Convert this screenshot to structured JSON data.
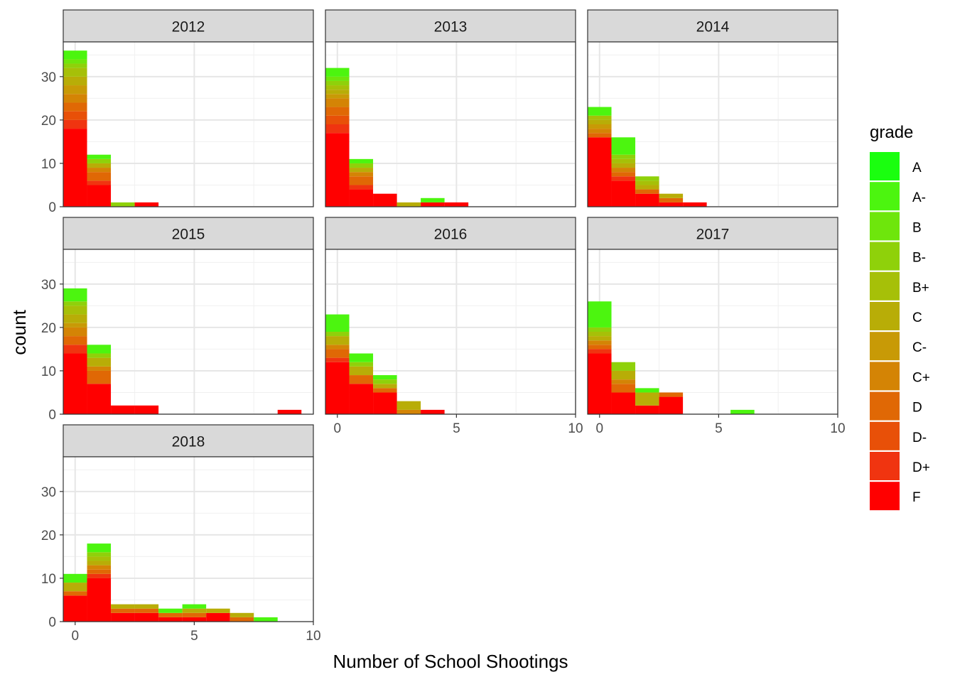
{
  "chart_data": {
    "type": "bar",
    "stacked": true,
    "facet_variable": "year",
    "xlabel": "Number of School Shootings",
    "ylabel": "count",
    "xlim": [
      -0.5,
      10
    ],
    "ylim": [
      0,
      38
    ],
    "x_ticks": [
      0,
      5,
      10
    ],
    "y_ticks": [
      0,
      10,
      20,
      30
    ],
    "grid": true,
    "legend": {
      "title": "grade",
      "placement": "right",
      "entries": [
        "A",
        "A-",
        "B",
        "B-",
        "B+",
        "C",
        "C-",
        "C+",
        "D",
        "D-",
        "D+",
        "F"
      ]
    },
    "grade_colors": {
      "A": "#1aff0f",
      "A-": "#4cf50f",
      "B": "#6ee60c",
      "B-": "#8fd10a",
      "B+": "#a6c008",
      "C": "#b8ad07",
      "C-": "#c89a06",
      "C+": "#d48405",
      "D": "#e06805",
      "D-": "#e85008",
      "D+": "#f03410",
      "F": "#ff0000"
    },
    "facets": [
      {
        "label": "2012",
        "bins": [
          {
            "x": 0,
            "total": 36,
            "stack": [
              {
                "grade": "F",
                "value": 18
              },
              {
                "grade": "D+",
                "value": 2
              },
              {
                "grade": "D-",
                "value": 2
              },
              {
                "grade": "D",
                "value": 2
              },
              {
                "grade": "C+",
                "value": 2
              },
              {
                "grade": "C-",
                "value": 2
              },
              {
                "grade": "C",
                "value": 2
              },
              {
                "grade": "B+",
                "value": 2
              },
              {
                "grade": "B-",
                "value": 1
              },
              {
                "grade": "B",
                "value": 1
              },
              {
                "grade": "A-",
                "value": 2
              }
            ]
          },
          {
            "x": 1,
            "total": 12,
            "stack": [
              {
                "grade": "F",
                "value": 5
              },
              {
                "grade": "D+",
                "value": 1
              },
              {
                "grade": "D",
                "value": 2
              },
              {
                "grade": "C+",
                "value": 1
              },
              {
                "grade": "C",
                "value": 1
              },
              {
                "grade": "B-",
                "value": 1
              },
              {
                "grade": "A-",
                "value": 1
              }
            ]
          },
          {
            "x": 2,
            "total": 1,
            "stack": [
              {
                "grade": "B-",
                "value": 1
              }
            ]
          },
          {
            "x": 3,
            "total": 1,
            "stack": [
              {
                "grade": "F",
                "value": 1
              }
            ]
          }
        ]
      },
      {
        "label": "2013",
        "bins": [
          {
            "x": 0,
            "total": 32,
            "stack": [
              {
                "grade": "F",
                "value": 17
              },
              {
                "grade": "D+",
                "value": 2
              },
              {
                "grade": "D-",
                "value": 2
              },
              {
                "grade": "D",
                "value": 2
              },
              {
                "grade": "C+",
                "value": 2
              },
              {
                "grade": "C-",
                "value": 1
              },
              {
                "grade": "C",
                "value": 1
              },
              {
                "grade": "B+",
                "value": 1
              },
              {
                "grade": "B-",
                "value": 1
              },
              {
                "grade": "B",
                "value": 1
              },
              {
                "grade": "A-",
                "value": 2
              }
            ]
          },
          {
            "x": 1,
            "total": 11,
            "stack": [
              {
                "grade": "F",
                "value": 4
              },
              {
                "grade": "D+",
                "value": 1
              },
              {
                "grade": "D",
                "value": 2
              },
              {
                "grade": "C+",
                "value": 1
              },
              {
                "grade": "C",
                "value": 1
              },
              {
                "grade": "B-",
                "value": 1
              },
              {
                "grade": "A-",
                "value": 1
              }
            ]
          },
          {
            "x": 2,
            "total": 3,
            "stack": [
              {
                "grade": "F",
                "value": 3
              }
            ]
          },
          {
            "x": 3,
            "total": 1,
            "stack": [
              {
                "grade": "C",
                "value": 1
              }
            ]
          },
          {
            "x": 4,
            "total": 2,
            "stack": [
              {
                "grade": "F",
                "value": 1
              },
              {
                "grade": "A-",
                "value": 1
              }
            ]
          },
          {
            "x": 5,
            "total": 1,
            "stack": [
              {
                "grade": "F",
                "value": 1
              }
            ]
          }
        ]
      },
      {
        "label": "2014",
        "bins": [
          {
            "x": 0,
            "total": 23,
            "stack": [
              {
                "grade": "F",
                "value": 16
              },
              {
                "grade": "D",
                "value": 1
              },
              {
                "grade": "C+",
                "value": 1
              },
              {
                "grade": "C-",
                "value": 1
              },
              {
                "grade": "C",
                "value": 1
              },
              {
                "grade": "B+",
                "value": 1
              },
              {
                "grade": "A-",
                "value": 2
              }
            ]
          },
          {
            "x": 1,
            "total": 16,
            "stack": [
              {
                "grade": "F",
                "value": 6
              },
              {
                "grade": "D+",
                "value": 1
              },
              {
                "grade": "D",
                "value": 1
              },
              {
                "grade": "C+",
                "value": 1
              },
              {
                "grade": "C",
                "value": 1
              },
              {
                "grade": "B+",
                "value": 1
              },
              {
                "grade": "B-",
                "value": 1
              },
              {
                "grade": "A-",
                "value": 4
              }
            ]
          },
          {
            "x": 2,
            "total": 7,
            "stack": [
              {
                "grade": "F",
                "value": 3
              },
              {
                "grade": "D",
                "value": 1
              },
              {
                "grade": "C",
                "value": 1
              },
              {
                "grade": "B+",
                "value": 1
              },
              {
                "grade": "B-",
                "value": 1
              }
            ]
          },
          {
            "x": 3,
            "total": 3,
            "stack": [
              {
                "grade": "F",
                "value": 1
              },
              {
                "grade": "D",
                "value": 1
              },
              {
                "grade": "C",
                "value": 1
              }
            ]
          },
          {
            "x": 4,
            "total": 1,
            "stack": [
              {
                "grade": "F",
                "value": 1
              }
            ]
          }
        ]
      },
      {
        "label": "2015",
        "bins": [
          {
            "x": 0,
            "total": 29,
            "stack": [
              {
                "grade": "F",
                "value": 14
              },
              {
                "grade": "D+",
                "value": 2
              },
              {
                "grade": "D",
                "value": 2
              },
              {
                "grade": "C+",
                "value": 2
              },
              {
                "grade": "C-",
                "value": 1
              },
              {
                "grade": "C",
                "value": 2
              },
              {
                "grade": "B+",
                "value": 2
              },
              {
                "grade": "B-",
                "value": 1
              },
              {
                "grade": "A-",
                "value": 3
              }
            ]
          },
          {
            "x": 1,
            "total": 16,
            "stack": [
              {
                "grade": "F",
                "value": 7
              },
              {
                "grade": "D",
                "value": 3
              },
              {
                "grade": "C+",
                "value": 1
              },
              {
                "grade": "C",
                "value": 2
              },
              {
                "grade": "B-",
                "value": 1
              },
              {
                "grade": "A-",
                "value": 2
              }
            ]
          },
          {
            "x": 2,
            "total": 2,
            "stack": [
              {
                "grade": "F",
                "value": 2
              }
            ]
          },
          {
            "x": 3,
            "total": 2,
            "stack": [
              {
                "grade": "F",
                "value": 2
              }
            ]
          },
          {
            "x": 9,
            "total": 1,
            "stack": [
              {
                "grade": "F",
                "value": 1
              }
            ]
          }
        ]
      },
      {
        "label": "2016",
        "bins": [
          {
            "x": 0,
            "total": 23,
            "stack": [
              {
                "grade": "F",
                "value": 12
              },
              {
                "grade": "D+",
                "value": 1
              },
              {
                "grade": "D",
                "value": 2
              },
              {
                "grade": "C+",
                "value": 1
              },
              {
                "grade": "C",
                "value": 2
              },
              {
                "grade": "B-",
                "value": 1
              },
              {
                "grade": "A-",
                "value": 4
              }
            ]
          },
          {
            "x": 1,
            "total": 14,
            "stack": [
              {
                "grade": "F",
                "value": 7
              },
              {
                "grade": "D",
                "value": 2
              },
              {
                "grade": "C",
                "value": 2
              },
              {
                "grade": "B-",
                "value": 1
              },
              {
                "grade": "A-",
                "value": 2
              }
            ]
          },
          {
            "x": 2,
            "total": 9,
            "stack": [
              {
                "grade": "F",
                "value": 5
              },
              {
                "grade": "D",
                "value": 1
              },
              {
                "grade": "C",
                "value": 1
              },
              {
                "grade": "B-",
                "value": 1
              },
              {
                "grade": "A-",
                "value": 1
              }
            ]
          },
          {
            "x": 3,
            "total": 3,
            "stack": [
              {
                "grade": "C+",
                "value": 1
              },
              {
                "grade": "C",
                "value": 2
              }
            ]
          },
          {
            "x": 4,
            "total": 1,
            "stack": [
              {
                "grade": "F",
                "value": 1
              }
            ]
          }
        ]
      },
      {
        "label": "2017",
        "bins": [
          {
            "x": 0,
            "total": 26,
            "stack": [
              {
                "grade": "F",
                "value": 14
              },
              {
                "grade": "D+",
                "value": 1
              },
              {
                "grade": "D",
                "value": 1
              },
              {
                "grade": "C+",
                "value": 1
              },
              {
                "grade": "C",
                "value": 1
              },
              {
                "grade": "B+",
                "value": 1
              },
              {
                "grade": "B-",
                "value": 1
              },
              {
                "grade": "A-",
                "value": 6
              }
            ]
          },
          {
            "x": 1,
            "total": 12,
            "stack": [
              {
                "grade": "F",
                "value": 5
              },
              {
                "grade": "D",
                "value": 2
              },
              {
                "grade": "C+",
                "value": 1
              },
              {
                "grade": "C",
                "value": 2
              },
              {
                "grade": "B-",
                "value": 2
              }
            ]
          },
          {
            "x": 2,
            "total": 6,
            "stack": [
              {
                "grade": "F",
                "value": 2
              },
              {
                "grade": "C",
                "value": 3
              },
              {
                "grade": "A-",
                "value": 1
              }
            ]
          },
          {
            "x": 3,
            "total": 5,
            "stack": [
              {
                "grade": "F",
                "value": 4
              },
              {
                "grade": "D",
                "value": 1
              }
            ]
          },
          {
            "x": 6,
            "total": 1,
            "stack": [
              {
                "grade": "A-",
                "value": 1
              }
            ]
          }
        ]
      },
      {
        "label": "2018",
        "bins": [
          {
            "x": 0,
            "total": 11,
            "stack": [
              {
                "grade": "F",
                "value": 6
              },
              {
                "grade": "D",
                "value": 1
              },
              {
                "grade": "C",
                "value": 2
              },
              {
                "grade": "A-",
                "value": 2
              }
            ]
          },
          {
            "x": 1,
            "total": 18,
            "stack": [
              {
                "grade": "F",
                "value": 10
              },
              {
                "grade": "D+",
                "value": 1
              },
              {
                "grade": "D",
                "value": 1
              },
              {
                "grade": "C+",
                "value": 1
              },
              {
                "grade": "C",
                "value": 1
              },
              {
                "grade": "B+",
                "value": 1
              },
              {
                "grade": "B-",
                "value": 1
              },
              {
                "grade": "A-",
                "value": 2
              }
            ]
          },
          {
            "x": 2,
            "total": 4,
            "stack": [
              {
                "grade": "F",
                "value": 2
              },
              {
                "grade": "D",
                "value": 1
              },
              {
                "grade": "C",
                "value": 1
              }
            ]
          },
          {
            "x": 3,
            "total": 4,
            "stack": [
              {
                "grade": "F",
                "value": 2
              },
              {
                "grade": "D",
                "value": 1
              },
              {
                "grade": "C",
                "value": 1
              }
            ]
          },
          {
            "x": 4,
            "total": 3,
            "stack": [
              {
                "grade": "F",
                "value": 1
              },
              {
                "grade": "D",
                "value": 1
              },
              {
                "grade": "A-",
                "value": 1
              }
            ]
          },
          {
            "x": 5,
            "total": 4,
            "stack": [
              {
                "grade": "F",
                "value": 1
              },
              {
                "grade": "D",
                "value": 1
              },
              {
                "grade": "C",
                "value": 1
              },
              {
                "grade": "A-",
                "value": 1
              }
            ]
          },
          {
            "x": 6,
            "total": 3,
            "stack": [
              {
                "grade": "F",
                "value": 2
              },
              {
                "grade": "C",
                "value": 1
              }
            ]
          },
          {
            "x": 7,
            "total": 2,
            "stack": [
              {
                "grade": "D",
                "value": 1
              },
              {
                "grade": "C",
                "value": 1
              }
            ]
          },
          {
            "x": 8,
            "total": 1,
            "stack": [
              {
                "grade": "A-",
                "value": 1
              }
            ]
          }
        ]
      }
    ]
  }
}
